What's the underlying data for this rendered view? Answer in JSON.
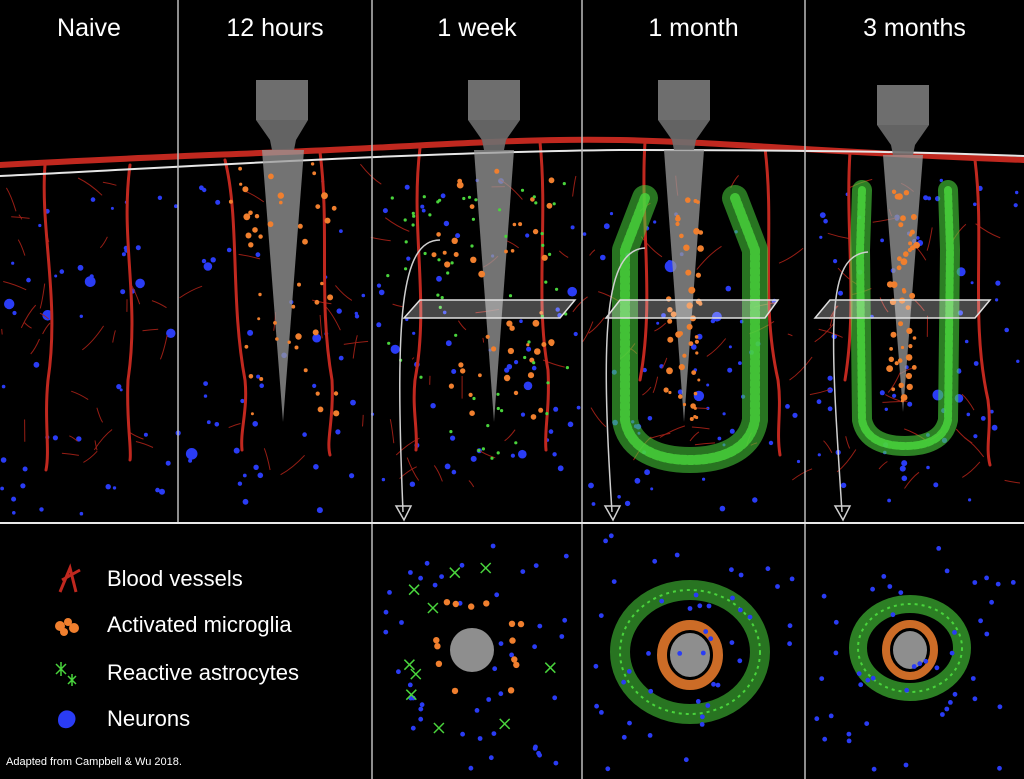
{
  "stages": [
    {
      "label": "Naive"
    },
    {
      "label": "12 hours"
    },
    {
      "label": "1 week"
    },
    {
      "label": "1 month"
    },
    {
      "label": "3 months"
    }
  ],
  "legend": {
    "items": [
      {
        "label": "Blood vessels",
        "icon": "blood-vessel-icon",
        "color": "#c0281f"
      },
      {
        "label": "Activated microglia",
        "icon": "microglia-icon",
        "color": "#f07f2e"
      },
      {
        "label": "Reactive astrocytes",
        "icon": "astrocyte-icon",
        "color": "#49d43c"
      },
      {
        "label": "Neurons",
        "icon": "neuron-icon",
        "color": "#2a3cf5"
      }
    ]
  },
  "credit": "Adapted from Campbell & Wu 2018.",
  "colors": {
    "background": "#000000",
    "vessel": "#c0281f",
    "microglia": "#f07f2e",
    "astrocyte": "#49d43c",
    "neuron": "#2a3cf5",
    "probe": "#8a8a8a",
    "divider": "#bdbdbd"
  }
}
